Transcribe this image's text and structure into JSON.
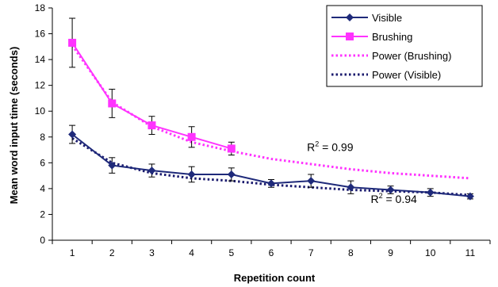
{
  "chart_data": {
    "type": "line",
    "xlabel": "Repetition count",
    "ylabel": "Mean word input time (seconds)",
    "categories": [
      "1",
      "2",
      "3",
      "4",
      "5",
      "6",
      "7",
      "8",
      "9",
      "10",
      "11"
    ],
    "ylim": [
      0,
      18
    ],
    "yticks": [
      "0",
      "2",
      "4",
      "6",
      "8",
      "10",
      "12",
      "14",
      "16",
      "18"
    ],
    "grid": false,
    "legend_position": "top-right",
    "series": [
      {
        "name": "Visible",
        "color": "#1f2a7a",
        "marker": "diamond",
        "x": [
          1,
          2,
          3,
          4,
          5,
          6,
          7,
          8,
          9,
          10,
          11
        ],
        "values": [
          8.2,
          5.8,
          5.4,
          5.1,
          5.1,
          4.4,
          4.6,
          4.1,
          3.9,
          3.7,
          3.4
        ],
        "error": [
          0.7,
          0.6,
          0.5,
          0.6,
          0.5,
          0.3,
          0.5,
          0.5,
          0.3,
          0.3,
          0.2
        ]
      },
      {
        "name": "Brushing",
        "color": "#ff33ff",
        "marker": "square",
        "x": [
          1,
          2,
          3,
          4,
          5
        ],
        "values": [
          15.3,
          10.6,
          8.9,
          8.0,
          7.1
        ],
        "error": [
          1.9,
          1.1,
          0.7,
          0.8,
          0.5
        ]
      }
    ],
    "trendlines": [
      {
        "name": "Power (Brushing)",
        "color": "#ff33ff",
        "style": "dotted",
        "x": [
          1,
          2,
          3,
          4,
          5,
          6,
          7,
          8,
          9,
          10,
          11
        ],
        "values": [
          15.1,
          10.7,
          8.8,
          7.6,
          6.9,
          6.3,
          5.9,
          5.5,
          5.2,
          5.0,
          4.8
        ]
      },
      {
        "name": "Power (Visible)",
        "color": "#1a1a6e",
        "style": "dotted",
        "x": [
          1,
          2,
          3,
          4,
          5,
          6,
          7,
          8,
          9,
          10,
          11
        ],
        "values": [
          7.9,
          6.0,
          5.2,
          4.8,
          4.6,
          4.3,
          4.1,
          3.9,
          3.8,
          3.7,
          3.5
        ]
      }
    ],
    "annotations": [
      {
        "text": "R² = 0.99",
        "x": 6.9,
        "y": 6.9
      },
      {
        "text": "R² = 0.94",
        "x": 8.5,
        "y": 2.9
      }
    ]
  }
}
